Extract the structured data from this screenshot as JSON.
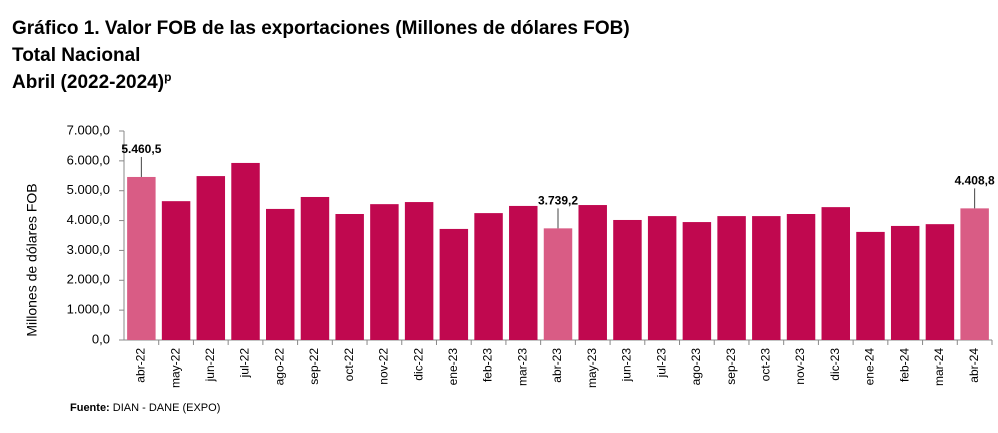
{
  "chart_data": {
    "type": "bar",
    "title": "Gráfico 1. Valor FOB de las exportaciones (Millones de dólares FOB)",
    "subtitle": "Total Nacional",
    "period": "Abril (2022-2024)",
    "period_note": "p",
    "y_label": "Millones de dólares FOB",
    "source_label": "Fuente:",
    "source": "DIAN - DANE (EXPO)",
    "categories": [
      "abr-22",
      "may-22",
      "jun-22",
      "jul-22",
      "ago-22",
      "sep-22",
      "oct-22",
      "nov-22",
      "dic-22",
      "ene-23",
      "feb-23",
      "mar-23",
      "abr-23",
      "may-23",
      "jun-23",
      "jul-23",
      "ago-23",
      "sep-23",
      "oct-23",
      "nov-23",
      "dic-23",
      "ene-24",
      "feb-24",
      "mar-24",
      "abr-24"
    ],
    "values": [
      5460.5,
      4650,
      5490,
      5930,
      4390,
      4790,
      4220,
      4550,
      4620,
      3720,
      4250,
      4490,
      3739.2,
      4520,
      4020,
      4150,
      3950,
      4150,
      4150,
      4220,
      4450,
      3620,
      3820,
      3880,
      4408.8
    ],
    "value_labels": [
      "5.460,5",
      null,
      null,
      null,
      null,
      null,
      null,
      null,
      null,
      null,
      null,
      null,
      "3.739,2",
      null,
      null,
      null,
      null,
      null,
      null,
      null,
      null,
      null,
      null,
      null,
      "4.408,8"
    ],
    "colors": [
      "#d95c85",
      "#c0084f",
      "#c0084f",
      "#c0084f",
      "#c0084f",
      "#c0084f",
      "#c0084f",
      "#c0084f",
      "#c0084f",
      "#c0084f",
      "#c0084f",
      "#c0084f",
      "#d95c85",
      "#c0084f",
      "#c0084f",
      "#c0084f",
      "#c0084f",
      "#c0084f",
      "#c0084f",
      "#c0084f",
      "#c0084f",
      "#c0084f",
      "#c0084f",
      "#c0084f",
      "#d95c85"
    ],
    "ylim": [
      0,
      7000
    ],
    "yticks": [
      {
        "value": 0,
        "label": "0,0"
      },
      {
        "value": 1000,
        "label": "1.000,0"
      },
      {
        "value": 2000,
        "label": "2.000,0"
      },
      {
        "value": 3000,
        "label": "3.000,0"
      },
      {
        "value": 4000,
        "label": "4.000,0"
      },
      {
        "value": 5000,
        "label": "5.000,0"
      },
      {
        "value": 6000,
        "label": "6.000,0"
      },
      {
        "value": 7000,
        "label": "7.000,0"
      }
    ],
    "grid": false
  }
}
